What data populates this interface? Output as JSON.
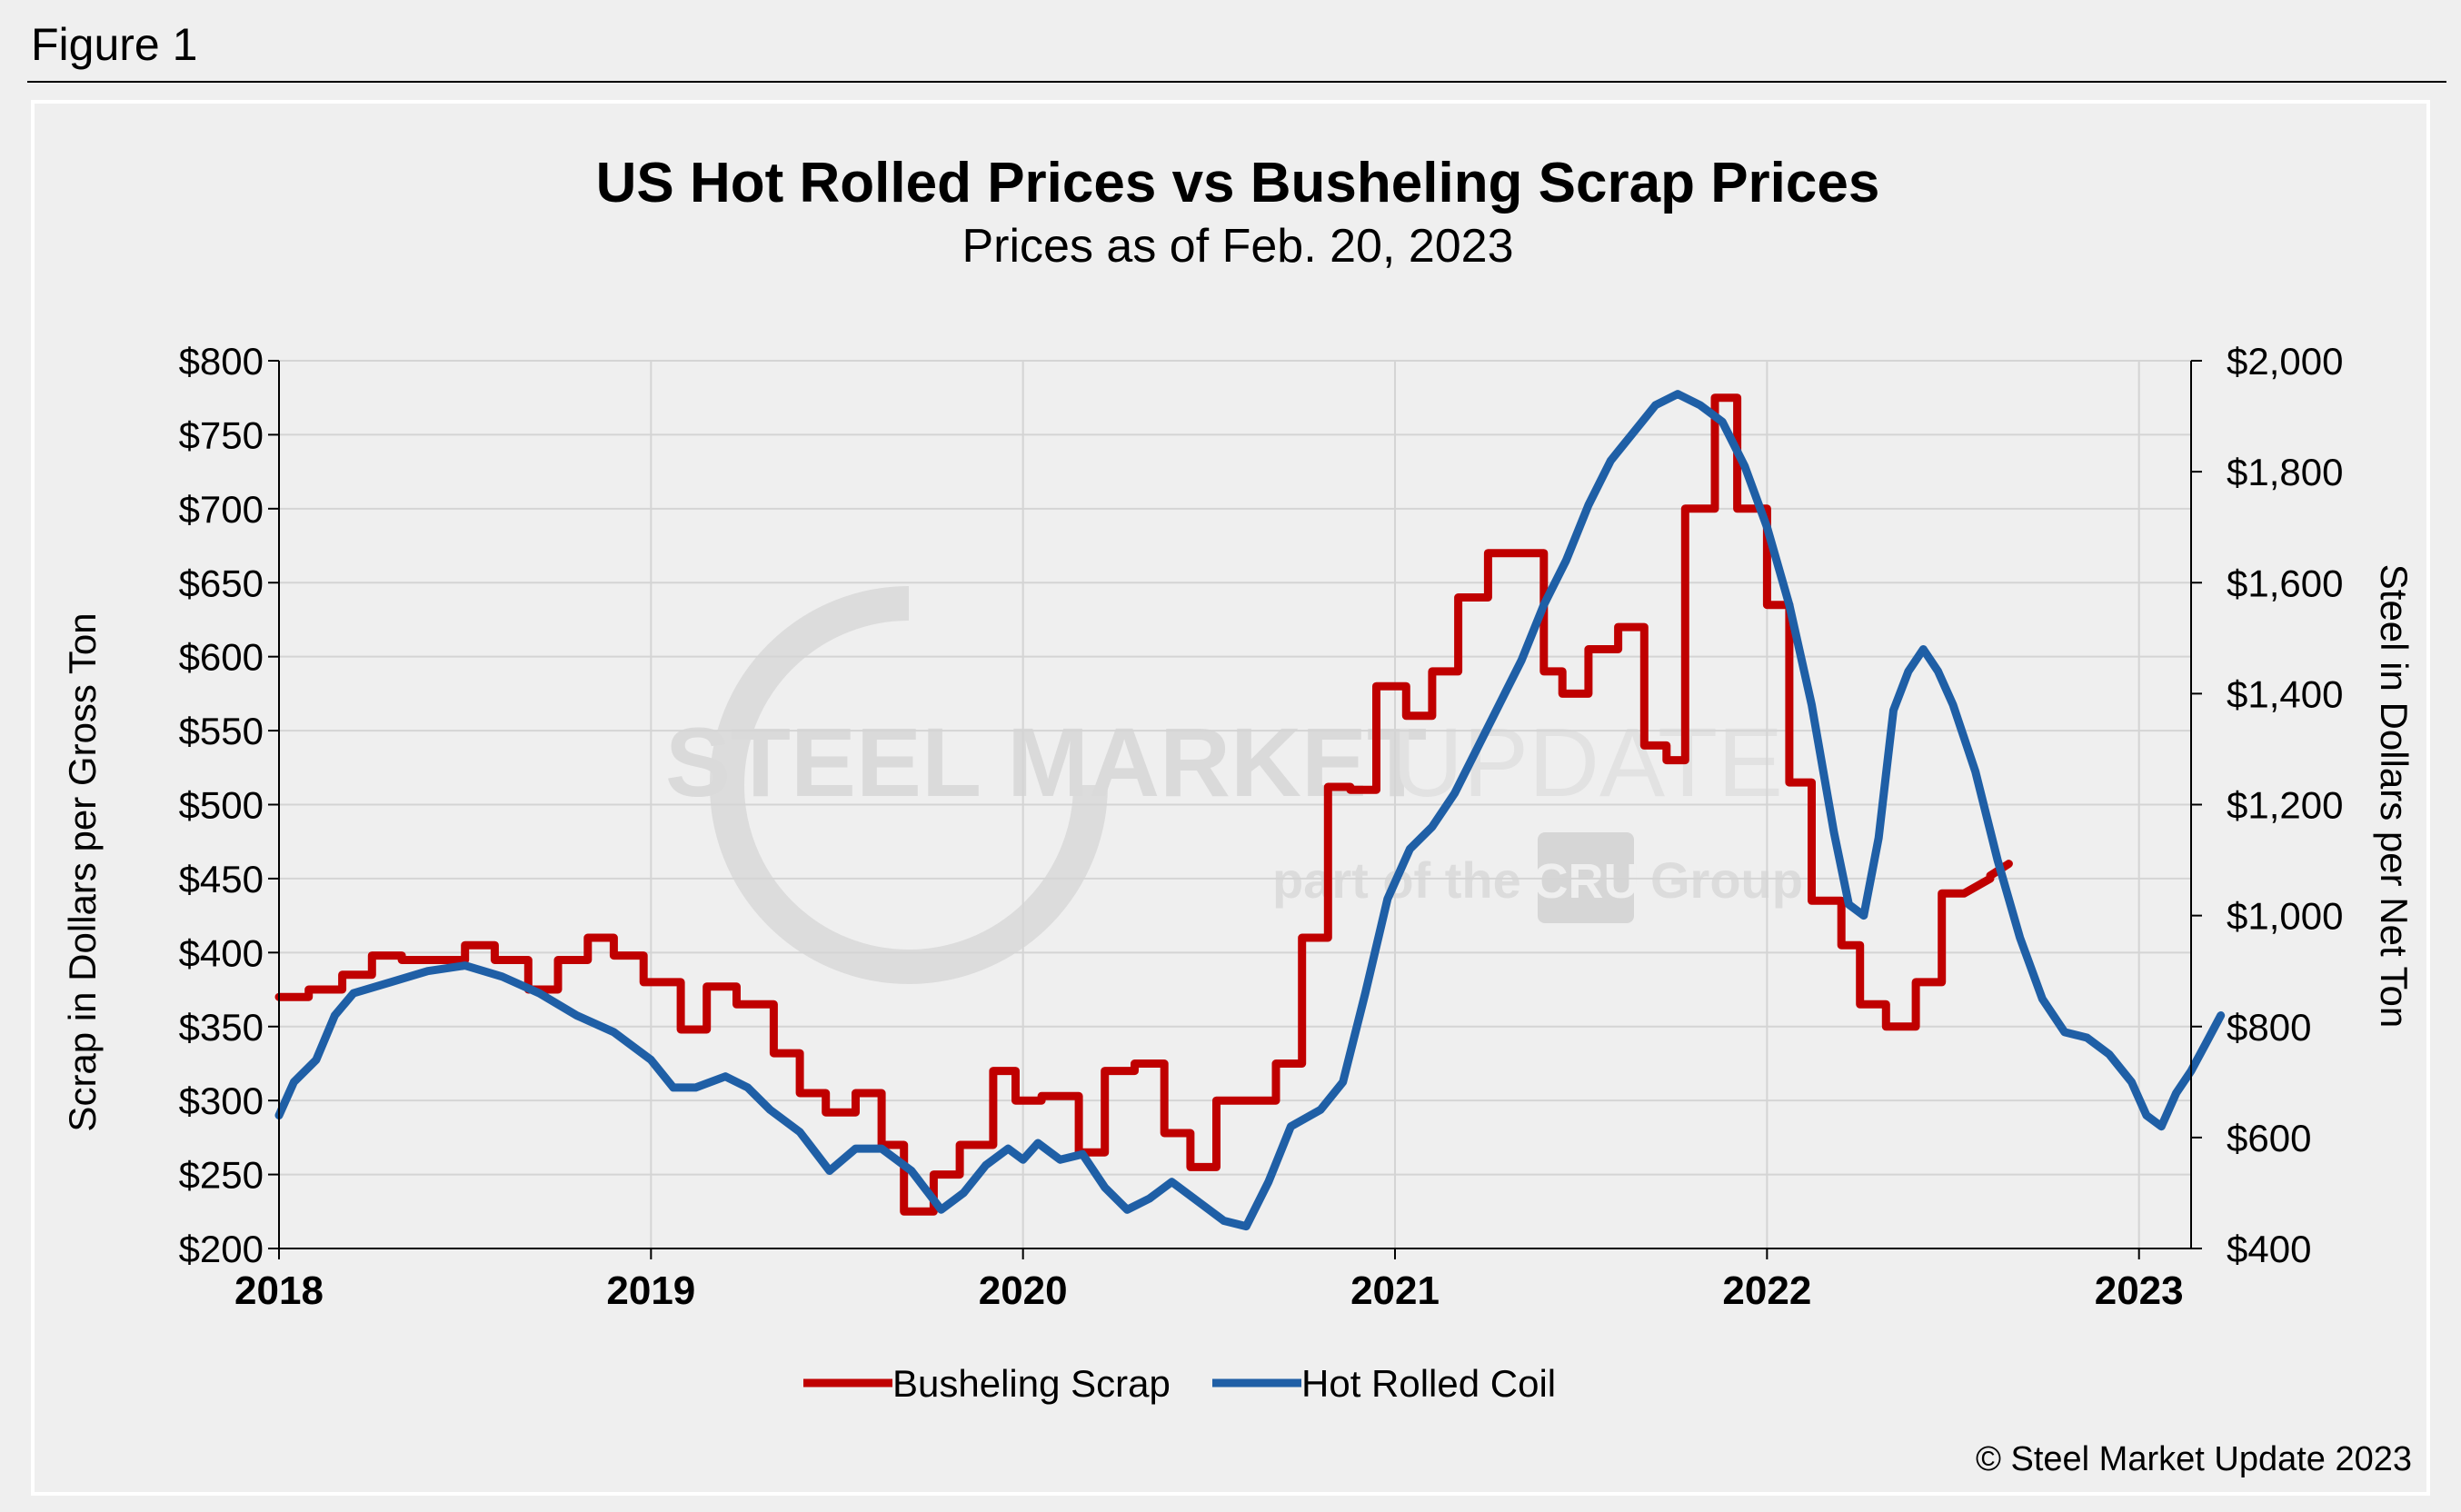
{
  "figure_label": "Figure 1",
  "copyright": "© Steel Market Update 2023",
  "watermark": {
    "name_bold": "STEEL MARKET",
    "name_light": "UPDATE",
    "part_of_prefix": "part of the",
    "brand": "CRU",
    "part_of_suffix": "Group"
  },
  "chart_data": {
    "type": "line",
    "title": "US Hot Rolled Prices vs Busheling Scrap Prices",
    "subtitle": "Prices as of Feb. 20, 2023",
    "xlabel": "",
    "xlim": [
      2018.0,
      2023.14
    ],
    "x_ticks": [
      2018,
      2019,
      2020,
      2021,
      2022,
      2023
    ],
    "x_tick_labels": [
      "2018",
      "2019",
      "2020",
      "2021",
      "2022",
      "2023"
    ],
    "y_left": {
      "label": "Scrap in Dollars per Gross Ton",
      "lim": [
        200,
        800
      ],
      "ticks": [
        200,
        250,
        300,
        350,
        400,
        450,
        500,
        550,
        600,
        650,
        700,
        750,
        800
      ],
      "tick_labels": [
        "$200",
        "$250",
        "$300",
        "$350",
        "$400",
        "$450",
        "$500",
        "$550",
        "$600",
        "$650",
        "$700",
        "$750",
        "$800"
      ]
    },
    "y_right": {
      "label": "Steel in Dollars per Net Ton",
      "lim": [
        400,
        2000
      ],
      "ticks": [
        400,
        600,
        800,
        1000,
        1200,
        1400,
        1600,
        1800,
        2000
      ],
      "tick_labels": [
        "$400",
        "$600",
        "$800",
        "$1,000",
        "$1,200",
        "$1,400",
        "$1,600",
        "$1,800",
        "$2,000"
      ]
    },
    "grid": true,
    "legend_position": "bottom-center",
    "series": [
      {
        "name": "Busheling Scrap",
        "axis": "left",
        "color": "#c00000",
        "points": [
          [
            2018.0,
            370
          ],
          [
            2018.08,
            370
          ],
          [
            2018.08,
            375
          ],
          [
            2018.17,
            375
          ],
          [
            2018.17,
            385
          ],
          [
            2018.25,
            385
          ],
          [
            2018.25,
            398
          ],
          [
            2018.33,
            398
          ],
          [
            2018.33,
            395
          ],
          [
            2018.5,
            395
          ],
          [
            2018.5,
            405
          ],
          [
            2018.58,
            405
          ],
          [
            2018.58,
            395
          ],
          [
            2018.67,
            395
          ],
          [
            2018.67,
            375
          ],
          [
            2018.75,
            375
          ],
          [
            2018.75,
            395
          ],
          [
            2018.83,
            395
          ],
          [
            2018.83,
            410
          ],
          [
            2018.9,
            410
          ],
          [
            2018.9,
            398
          ],
          [
            2018.98,
            398
          ],
          [
            2018.98,
            380
          ],
          [
            2019.08,
            380
          ],
          [
            2019.08,
            348
          ],
          [
            2019.15,
            348
          ],
          [
            2019.15,
            377
          ],
          [
            2019.23,
            377
          ],
          [
            2019.23,
            365
          ],
          [
            2019.33,
            365
          ],
          [
            2019.33,
            332
          ],
          [
            2019.4,
            332
          ],
          [
            2019.4,
            305
          ],
          [
            2019.47,
            305
          ],
          [
            2019.47,
            292
          ],
          [
            2019.55,
            292
          ],
          [
            2019.55,
            305
          ],
          [
            2019.62,
            305
          ],
          [
            2019.62,
            270
          ],
          [
            2019.68,
            270
          ],
          [
            2019.68,
            225
          ],
          [
            2019.76,
            225
          ],
          [
            2019.76,
            250
          ],
          [
            2019.83,
            250
          ],
          [
            2019.83,
            270
          ],
          [
            2019.92,
            270
          ],
          [
            2019.92,
            320
          ],
          [
            2019.98,
            320
          ],
          [
            2019.98,
            300
          ],
          [
            2020.05,
            300
          ],
          [
            2020.05,
            303
          ],
          [
            2020.15,
            303
          ],
          [
            2020.15,
            265
          ],
          [
            2020.22,
            265
          ],
          [
            2020.22,
            320
          ],
          [
            2020.3,
            320
          ],
          [
            2020.3,
            325
          ],
          [
            2020.38,
            325
          ],
          [
            2020.38,
            278
          ],
          [
            2020.45,
            278
          ],
          [
            2020.45,
            255
          ],
          [
            2020.52,
            255
          ],
          [
            2020.52,
            300
          ],
          [
            2020.63,
            300
          ],
          [
            2020.63,
            300
          ],
          [
            2020.68,
            300
          ],
          [
            2020.68,
            325
          ],
          [
            2020.75,
            325
          ],
          [
            2020.75,
            410
          ],
          [
            2020.82,
            410
          ],
          [
            2020.82,
            512
          ],
          [
            2020.88,
            512
          ],
          [
            2020.88,
            510
          ],
          [
            2020.95,
            510
          ],
          [
            2020.95,
            580
          ],
          [
            2021.03,
            580
          ],
          [
            2021.03,
            560
          ],
          [
            2021.1,
            560
          ],
          [
            2021.1,
            590
          ],
          [
            2021.17,
            590
          ],
          [
            2021.17,
            640
          ],
          [
            2021.25,
            640
          ],
          [
            2021.25,
            670
          ],
          [
            2021.4,
            670
          ],
          [
            2021.4,
            590
          ],
          [
            2021.45,
            590
          ],
          [
            2021.45,
            575
          ],
          [
            2021.52,
            575
          ],
          [
            2021.52,
            605
          ],
          [
            2021.6,
            605
          ],
          [
            2021.6,
            620
          ],
          [
            2021.67,
            620
          ],
          [
            2021.67,
            540
          ],
          [
            2021.73,
            540
          ],
          [
            2021.73,
            530
          ],
          [
            2021.78,
            530
          ],
          [
            2021.78,
            700
          ],
          [
            2021.86,
            700
          ],
          [
            2021.86,
            775
          ],
          [
            2021.92,
            775
          ],
          [
            2021.92,
            700
          ],
          [
            2022.0,
            700
          ],
          [
            2022.0,
            635
          ],
          [
            2022.06,
            635
          ],
          [
            2022.06,
            515
          ],
          [
            2022.12,
            515
          ],
          [
            2022.12,
            435
          ],
          [
            2022.2,
            435
          ],
          [
            2022.2,
            405
          ],
          [
            2022.25,
            405
          ],
          [
            2022.25,
            365
          ],
          [
            2022.32,
            365
          ],
          [
            2022.32,
            350
          ],
          [
            2022.4,
            350
          ],
          [
            2022.4,
            380
          ],
          [
            2022.47,
            380
          ],
          [
            2022.47,
            440
          ],
          [
            2022.53,
            440
          ],
          [
            2022.53,
            440
          ],
          [
            2022.6,
            450
          ],
          [
            2022.6,
            452
          ],
          [
            2022.65,
            460
          ]
        ]
      },
      {
        "name": "Hot Rolled Coil",
        "axis": "right",
        "color": "#1f5fa6",
        "points": [
          [
            2018.0,
            640
          ],
          [
            2018.04,
            700
          ],
          [
            2018.1,
            740
          ],
          [
            2018.15,
            820
          ],
          [
            2018.2,
            860
          ],
          [
            2018.3,
            880
          ],
          [
            2018.4,
            900
          ],
          [
            2018.5,
            910
          ],
          [
            2018.6,
            890
          ],
          [
            2018.7,
            860
          ],
          [
            2018.8,
            820
          ],
          [
            2018.9,
            790
          ],
          [
            2019.0,
            740
          ],
          [
            2019.06,
            690
          ],
          [
            2019.12,
            690
          ],
          [
            2019.2,
            710
          ],
          [
            2019.26,
            690
          ],
          [
            2019.32,
            650
          ],
          [
            2019.4,
            610
          ],
          [
            2019.48,
            540
          ],
          [
            2019.55,
            580
          ],
          [
            2019.62,
            580
          ],
          [
            2019.7,
            540
          ],
          [
            2019.78,
            470
          ],
          [
            2019.84,
            500
          ],
          [
            2019.9,
            550
          ],
          [
            2019.96,
            580
          ],
          [
            2020.0,
            560
          ],
          [
            2020.04,
            590
          ],
          [
            2020.1,
            560
          ],
          [
            2020.16,
            570
          ],
          [
            2020.22,
            510
          ],
          [
            2020.28,
            470
          ],
          [
            2020.34,
            490
          ],
          [
            2020.4,
            520
          ],
          [
            2020.48,
            480
          ],
          [
            2020.54,
            450
          ],
          [
            2020.6,
            440
          ],
          [
            2020.66,
            520
          ],
          [
            2020.72,
            620
          ],
          [
            2020.8,
            650
          ],
          [
            2020.86,
            700
          ],
          [
            2020.92,
            860
          ],
          [
            2020.98,
            1030
          ],
          [
            2021.04,
            1120
          ],
          [
            2021.1,
            1160
          ],
          [
            2021.16,
            1220
          ],
          [
            2021.22,
            1300
          ],
          [
            2021.28,
            1380
          ],
          [
            2021.34,
            1460
          ],
          [
            2021.4,
            1560
          ],
          [
            2021.46,
            1640
          ],
          [
            2021.52,
            1740
          ],
          [
            2021.58,
            1820
          ],
          [
            2021.64,
            1870
          ],
          [
            2021.7,
            1920
          ],
          [
            2021.76,
            1940
          ],
          [
            2021.82,
            1920
          ],
          [
            2021.88,
            1890
          ],
          [
            2021.94,
            1810
          ],
          [
            2022.0,
            1700
          ],
          [
            2022.06,
            1560
          ],
          [
            2022.12,
            1380
          ],
          [
            2022.18,
            1150
          ],
          [
            2022.22,
            1020
          ],
          [
            2022.26,
            1000
          ],
          [
            2022.3,
            1140
          ],
          [
            2022.34,
            1370
          ],
          [
            2022.38,
            1440
          ],
          [
            2022.42,
            1480
          ],
          [
            2022.46,
            1440
          ],
          [
            2022.5,
            1380
          ],
          [
            2022.56,
            1260
          ],
          [
            2022.62,
            1100
          ],
          [
            2022.68,
            960
          ],
          [
            2022.74,
            850
          ],
          [
            2022.8,
            790
          ],
          [
            2022.86,
            780
          ],
          [
            2022.92,
            750
          ],
          [
            2022.98,
            700
          ],
          [
            2023.02,
            640
          ],
          [
            2023.06,
            620
          ],
          [
            2023.1,
            680
          ],
          [
            2023.14,
            720
          ],
          [
            2023.18,
            770
          ],
          [
            2023.22,
            820
          ]
        ]
      }
    ]
  }
}
